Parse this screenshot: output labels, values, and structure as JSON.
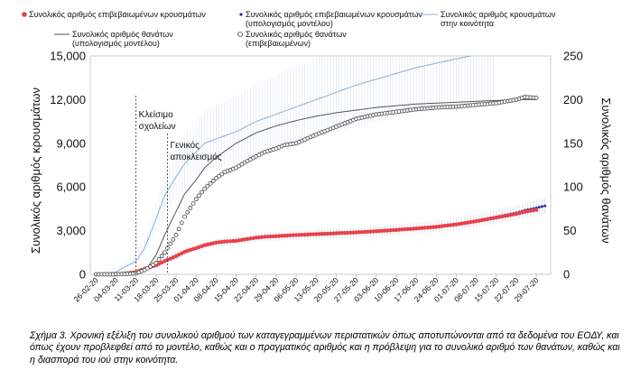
{
  "caption": "Σχήμα 3. Χρονική εξέλιξη του συνολικού αριθμού των καταγεγραμμένων περιστατικών όπως αποτυπώνονται από τα δεδομένα του ΕΟΔΥ, και όπως έχουν προβλεφθεί από το μοντέλο, καθώς και ο πραγματικός αριθμός και η πρόβλεψη για το συνολικό αριθμό των θανάτων, καθώς και η διασπορά του ιού στην κοινότητα.",
  "colors": {
    "confirmed": "#e8414a",
    "model_confirmed": "#1c2a9e",
    "community": "#8aaed8",
    "model_deaths": "#555555",
    "deaths": "#444444",
    "ci": "#d6dcef"
  },
  "chart_data": {
    "type": "line",
    "title": "",
    "ylabel": "Συνολικός αριθμός κρουσμάτων",
    "y2label": "Συνολικός αριθμός θανάτων",
    "ylim": [
      0,
      15000
    ],
    "y2lim": [
      0,
      250
    ],
    "yticks": [
      "0",
      "3,000",
      "6,000",
      "9,000",
      "12,000",
      "15,000"
    ],
    "y2ticks": [
      "0",
      "50",
      "100",
      "150",
      "200",
      "250"
    ],
    "xticks": [
      "26-02-20",
      "04-03-20",
      "11-03-20",
      "18-03-20",
      "25-03-20",
      "01-04-20",
      "08-04-20",
      "15-04-20",
      "22-04-20",
      "29-04-20",
      "06-05-20",
      "13-05-20",
      "20-05-20",
      "27-05-20",
      "03-06-20",
      "10-06-20",
      "17-06-20",
      "24-06-20",
      "01-07-20",
      "08-07-20",
      "15-07-20",
      "22-07-20",
      "29-07-20"
    ],
    "x_days": [
      0,
      7,
      14,
      21,
      28,
      35,
      42,
      49,
      56,
      63,
      70,
      77,
      84,
      91,
      98,
      105,
      112,
      119,
      126,
      133,
      140,
      147,
      154
    ],
    "legend_position": "top",
    "annotations": [
      {
        "day": 14,
        "text": [
          "Κλείσιμο",
          "σχολείων"
        ]
      },
      {
        "day": 25,
        "text": [
          "Γενικός",
          "αποκλεισμός"
        ]
      }
    ],
    "series": [
      {
        "name": "Συνολικός αριθμός επιβεβαιωμένων κρουσμάτων",
        "axis": "left",
        "style": "dots-red",
        "x": [
          0,
          7,
          10,
          14,
          17,
          21,
          24,
          28,
          31,
          35,
          38,
          42,
          45,
          49,
          52,
          56,
          59,
          63,
          70,
          77,
          84,
          91,
          98,
          105,
          112,
          119,
          126,
          133,
          140,
          147,
          150,
          154
        ],
        "y": [
          0,
          2,
          50,
          150,
          380,
          620,
          900,
          1250,
          1550,
          1800,
          2000,
          2180,
          2250,
          2300,
          2400,
          2520,
          2580,
          2620,
          2700,
          2760,
          2820,
          2880,
          2960,
          3050,
          3150,
          3260,
          3430,
          3650,
          3900,
          4150,
          4300,
          4430
        ]
      },
      {
        "name": "Συνολικός αριθμός επιβεβαιωμένων κρουσμάτων (υπολογισμός μοντέλου)",
        "axis": "left",
        "style": "dots-blue",
        "x": [
          0,
          7,
          10,
          14,
          17,
          21,
          24,
          28,
          31,
          35,
          38,
          42,
          45,
          49,
          52,
          56,
          59,
          63,
          70,
          77,
          84,
          91,
          98,
          105,
          112,
          119,
          126,
          133,
          140,
          147,
          150,
          154,
          157
        ],
        "y": [
          0,
          3,
          45,
          140,
          360,
          600,
          880,
          1220,
          1520,
          1780,
          1980,
          2160,
          2240,
          2300,
          2400,
          2520,
          2580,
          2620,
          2700,
          2760,
          2820,
          2880,
          2970,
          3060,
          3170,
          3290,
          3460,
          3690,
          3950,
          4220,
          4400,
          4560,
          4700
        ]
      },
      {
        "name": "Συνολικός αριθμός κρουσμάτων στην κοινότητα",
        "axis": "left",
        "style": "line-light",
        "x": [
          0,
          7,
          10,
          14,
          17,
          21,
          24,
          28,
          31,
          35,
          38,
          42,
          49,
          56,
          63,
          70,
          77,
          84,
          91,
          98,
          105,
          112,
          119,
          126,
          131
        ],
        "y": [
          0,
          150,
          500,
          900,
          1800,
          3800,
          5400,
          6700,
          7600,
          8400,
          9000,
          9300,
          9800,
          10500,
          11000,
          11500,
          12000,
          12500,
          13000,
          13400,
          13800,
          14200,
          14500,
          14800,
          15000
        ]
      },
      {
        "name": "Συνολικός αριθμός θανάτων (υπολογισμός μοντέλου)",
        "axis": "right",
        "style": "line-gray",
        "x": [
          0,
          7,
          14,
          18,
          21,
          24,
          28,
          31,
          35,
          38,
          42,
          49,
          56,
          63,
          70,
          77,
          84,
          91,
          98,
          105,
          112,
          119,
          126,
          133,
          140,
          147,
          154
        ],
        "y": [
          0,
          0,
          2,
          8,
          22,
          45,
          72,
          92,
          108,
          122,
          134,
          150,
          162,
          170,
          176,
          181,
          185,
          188,
          191,
          193,
          195,
          196,
          197,
          198,
          199,
          200,
          200
        ]
      },
      {
        "name": "Συνολικός αριθμός θανάτων (επιβεβαιωμένων)",
        "axis": "right",
        "style": "circles",
        "x": [
          0,
          7,
          14,
          17,
          21,
          24,
          28,
          31,
          35,
          38,
          42,
          45,
          49,
          52,
          56,
          59,
          63,
          66,
          70,
          77,
          84,
          91,
          98,
          105,
          112,
          119,
          126,
          133,
          140,
          147,
          150,
          154
        ],
        "y": [
          0,
          0,
          1,
          5,
          13,
          25,
          45,
          66,
          86,
          98,
          110,
          117,
          122,
          128,
          135,
          140,
          144,
          148,
          150,
          160,
          169,
          178,
          183,
          186,
          189,
          191,
          192,
          194,
          196,
          200,
          203,
          202
        ]
      }
    ]
  }
}
